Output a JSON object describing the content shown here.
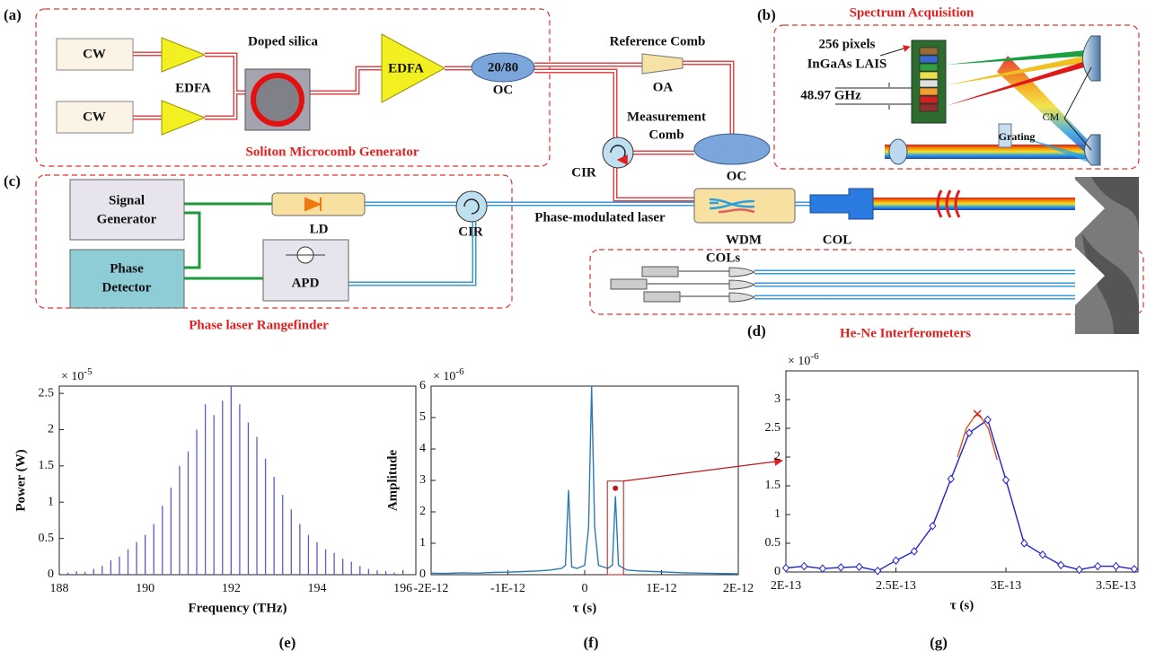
{
  "diagram": {
    "panel_labels": [
      "(a)",
      "(b)",
      "(c)",
      "(d)",
      "(e)",
      "(f)",
      "(g)"
    ],
    "cw": [
      "CW",
      "CW"
    ],
    "edfa_small": "EDFA",
    "doped_silica": "Doped silica",
    "edfa_big": "EDFA",
    "coupler_ratio": "20/80",
    "oc_1": "OC",
    "reference_comb": "Reference Comb",
    "oa": "OA",
    "measurement_comb": [
      "Measurement",
      "Comb"
    ],
    "cir_1": "CIR",
    "oc_2": "OC",
    "soliton_generator": "Soliton Microcomb Generator",
    "spectrum_acquisition": "Spectrum Acquisition",
    "detector": [
      "256 pixels",
      "InGaAs LAIS"
    ],
    "pixel_spacing": "48.97 GHz",
    "grating": "Grating",
    "cm": "CM",
    "signal_generator": [
      "Signal",
      "Generator"
    ],
    "ld": "LD",
    "cir_2": "CIR",
    "phase_modulated_laser": "Phase-modulated laser",
    "wdm": "WDM",
    "col": "COL",
    "phase_detector": [
      "Phase",
      "Detector"
    ],
    "apd": "APD",
    "rangefinder": "Phase laser Rangefinder",
    "cols": "COLs",
    "interferometers": "He-Ne Interferometers"
  },
  "chart_data": [
    {
      "type": "stem",
      "x_label": "Frequency (THz)",
      "y_label": "Power (W)",
      "multiplier": "× 10",
      "multiplier_exp": "-5",
      "color": "#5a5ad0",
      "x": [
        188.2,
        188.4,
        188.6,
        188.8,
        189.0,
        189.2,
        189.4,
        189.6,
        189.8,
        190.0,
        190.2,
        190.4,
        190.6,
        190.8,
        191.0,
        191.2,
        191.4,
        191.6,
        191.8,
        192.0,
        192.2,
        192.4,
        192.6,
        192.8,
        193.0,
        193.2,
        193.4,
        193.6,
        193.8,
        194.0,
        194.2,
        194.4,
        194.6,
        194.8,
        195.0,
        195.2,
        195.4,
        195.6,
        195.8,
        196.0
      ],
      "values": [
        0.03,
        0.05,
        0.04,
        0.08,
        0.12,
        0.2,
        0.25,
        0.35,
        0.45,
        0.55,
        0.7,
        0.95,
        1.2,
        1.5,
        1.7,
        2.0,
        2.35,
        2.2,
        2.4,
        2.6,
        2.35,
        2.1,
        1.9,
        1.6,
        1.35,
        1.1,
        0.9,
        0.7,
        0.55,
        0.45,
        0.35,
        0.3,
        0.22,
        0.18,
        0.12,
        0.08,
        0.06,
        0.05,
        0.03,
        0.02
      ],
      "xlim": [
        188,
        196.3
      ],
      "xticks": [
        188,
        190,
        192,
        194,
        196
      ],
      "ylim": [
        0,
        2.6
      ],
      "yticks": [
        0,
        0.5,
        1,
        1.5,
        2,
        2.5
      ]
    },
    {
      "type": "line",
      "x_label": "τ (s)",
      "y_label": "Amplitude",
      "multiplier": "× 10",
      "multiplier_exp": "-6",
      "color": "#2a7ab5",
      "x": [
        -2e-12,
        -1.8e-12,
        -1.6e-12,
        -1.4e-12,
        -1.2e-12,
        -1e-12,
        -8e-13,
        -6e-13,
        -4.5e-13,
        -3e-13,
        -2.5e-13,
        -2.1e-13,
        -1.7e-13,
        -1e-13,
        0,
        5e-14,
        9e-14,
        1.3e-13,
        1.8e-13,
        3e-13,
        3.6e-13,
        4e-13,
        4.4e-13,
        5.5e-13,
        7e-13,
        9e-13,
        1.1e-12,
        1.3e-12,
        1.5e-12,
        1.7e-12,
        2e-12
      ],
      "values": [
        0.05,
        0.04,
        0.06,
        0.05,
        0.07,
        0.08,
        0.1,
        0.12,
        0.15,
        0.2,
        0.3,
        2.7,
        0.25,
        0.2,
        0.3,
        1.5,
        6.0,
        1.5,
        0.3,
        0.2,
        0.3,
        2.5,
        0.3,
        0.15,
        0.12,
        0.1,
        0.08,
        0.06,
        0.05,
        0.04,
        0.03
      ],
      "highlight": {
        "x": 4e-13,
        "value": 2.75,
        "color": "#c01818"
      },
      "xlim": [
        -2e-12,
        2e-12
      ],
      "xticks": [
        {
          "value": -2e-12,
          "label": "-2E-12"
        },
        {
          "value": -1e-12,
          "label": "-1E-12"
        },
        0,
        {
          "value": 1e-12,
          "label": "1E-12"
        },
        {
          "value": 2e-12,
          "label": "2E-12"
        }
      ],
      "ylim": [
        0,
        6
      ],
      "yticks": [
        0,
        1,
        2,
        3,
        4,
        5,
        6
      ]
    },
    {
      "type": "line",
      "x_label": "τ (s)",
      "multiplier": "× 10",
      "multiplier_exp": "-6",
      "series": [
        {
          "color": "#2020d0",
          "marker": "diamond",
          "x": [
            2e-13,
            2.083e-13,
            2.167e-13,
            2.25e-13,
            2.333e-13,
            2.417e-13,
            2.5e-13,
            2.583e-13,
            2.667e-13,
            2.75e-13,
            2.833e-13,
            2.917e-13,
            3e-13,
            3.083e-13,
            3.167e-13,
            3.25e-13,
            3.333e-13,
            3.417e-13,
            3.5e-13,
            3.583e-13
          ],
          "values": [
            0.07,
            0.1,
            0.06,
            0.08,
            0.09,
            0.02,
            0.2,
            0.36,
            0.8,
            1.62,
            2.42,
            2.65,
            1.6,
            0.5,
            0.3,
            0.12,
            0.04,
            0.1,
            0.1,
            0.05
          ]
        },
        {
          "color": "#d9541a",
          "x": [
            2.78e-13,
            2.82e-13,
            2.86e-13,
            2.88e-13,
            2.92e-13,
            2.96e-13
          ],
          "values": [
            2.0,
            2.5,
            2.72,
            2.73,
            2.5,
            1.95
          ]
        }
      ],
      "peak": {
        "x": 2.87e-13,
        "value": 2.75,
        "color": "#d02020"
      },
      "xlim": [
        2e-13,
        3.6e-13
      ],
      "xticks": [
        {
          "value": 2e-13,
          "label": "2E-13"
        },
        {
          "value": 2.5e-13,
          "label": "2.5E-13"
        },
        {
          "value": 3e-13,
          "label": "3E-13"
        },
        {
          "value": 3.5e-13,
          "label": "3.5E-13"
        }
      ],
      "ylim": [
        0,
        3.5
      ],
      "yticks": [
        0,
        0.5,
        1,
        1.5,
        2,
        2.5,
        3
      ]
    }
  ]
}
